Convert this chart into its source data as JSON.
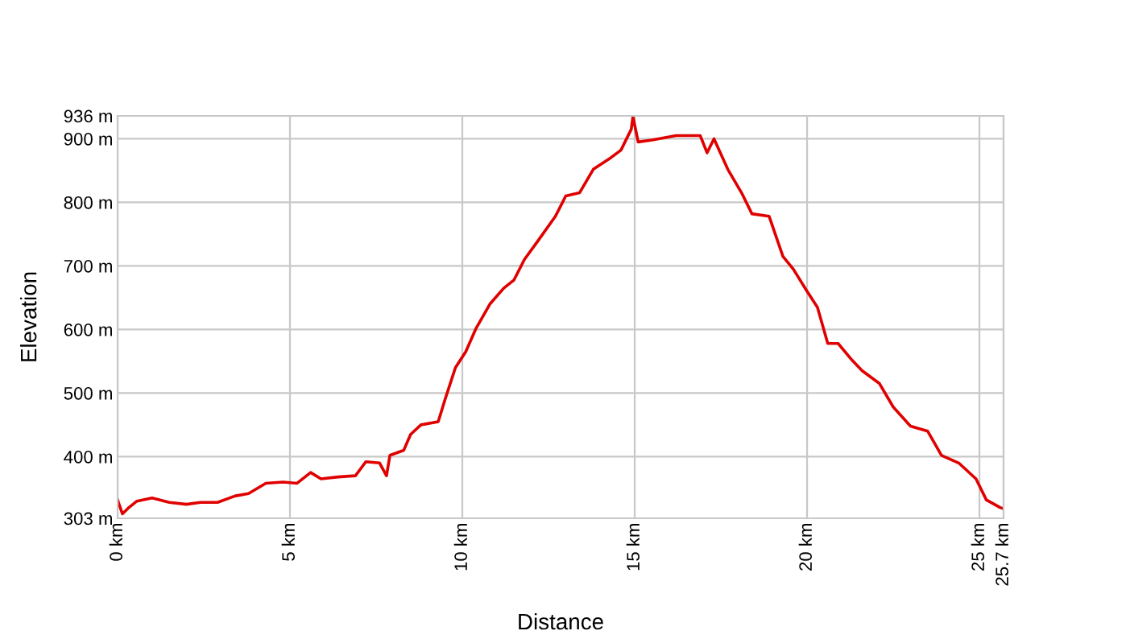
{
  "chart_data": {
    "type": "line",
    "xlabel": "Distance",
    "ylabel": "Elevation",
    "x": [
      0,
      0.14,
      0.33,
      0.56,
      1.0,
      1.5,
      2.0,
      2.4,
      2.9,
      3.4,
      3.8,
      4.3,
      4.8,
      5.2,
      5.6,
      5.9,
      6.4,
      6.9,
      7.2,
      7.6,
      7.8,
      7.9,
      8.3,
      8.5,
      8.8,
      9.3,
      9.5,
      9.8,
      10.1,
      10.4,
      10.8,
      11.2,
      11.5,
      11.8,
      12.2,
      12.7,
      13.0,
      13.4,
      13.8,
      14.3,
      14.6,
      14.9,
      14.95,
      15.1,
      15.5,
      16.2,
      16.9,
      17.1,
      17.3,
      17.7,
      18.1,
      18.4,
      18.9,
      19.3,
      19.6,
      20.0,
      20.3,
      20.6,
      20.9,
      21.3,
      21.6,
      22.1,
      22.5,
      23.0,
      23.5,
      23.9,
      24.4,
      24.9,
      25.2,
      25.6,
      25.7
    ],
    "series": [
      {
        "color": "#e00000",
        "values": [
          332,
          310,
          320,
          330,
          335,
          328,
          325,
          328,
          328,
          338,
          342,
          358,
          360,
          358,
          375,
          365,
          368,
          370,
          392,
          390,
          370,
          402,
          410,
          435,
          450,
          455,
          490,
          540,
          565,
          602,
          640,
          665,
          678,
          710,
          740,
          778,
          810,
          815,
          852,
          870,
          882,
          915,
          935,
          895,
          898,
          905,
          905,
          878,
          900,
          852,
          815,
          782,
          778,
          715,
          695,
          660,
          635,
          578,
          578,
          552,
          535,
          515,
          478,
          448,
          440,
          402,
          390,
          365,
          332,
          320,
          318
        ]
      }
    ],
    "xlim": [
      0,
      25.7
    ],
    "ylim": [
      303,
      936
    ],
    "xticks": [
      {
        "value": 0,
        "label": "0 km"
      },
      {
        "value": 5,
        "label": "5 km"
      },
      {
        "value": 10,
        "label": "10 km"
      },
      {
        "value": 15,
        "label": "15 km"
      },
      {
        "value": 20,
        "label": "20 km"
      },
      {
        "value": 25,
        "label": "25 km"
      },
      {
        "value": 25.7,
        "label": "25.7 km"
      }
    ],
    "yticks": [
      {
        "value": 303,
        "label": "303 m"
      },
      {
        "value": 400,
        "label": "400 m"
      },
      {
        "value": 500,
        "label": "500 m"
      },
      {
        "value": 600,
        "label": "600 m"
      },
      {
        "value": 700,
        "label": "700 m"
      },
      {
        "value": 800,
        "label": "800 m"
      },
      {
        "value": 900,
        "label": "900 m"
      },
      {
        "value": 936,
        "label": "936 m"
      }
    ],
    "grid": true,
    "line_style": "solid",
    "marker": "none"
  }
}
